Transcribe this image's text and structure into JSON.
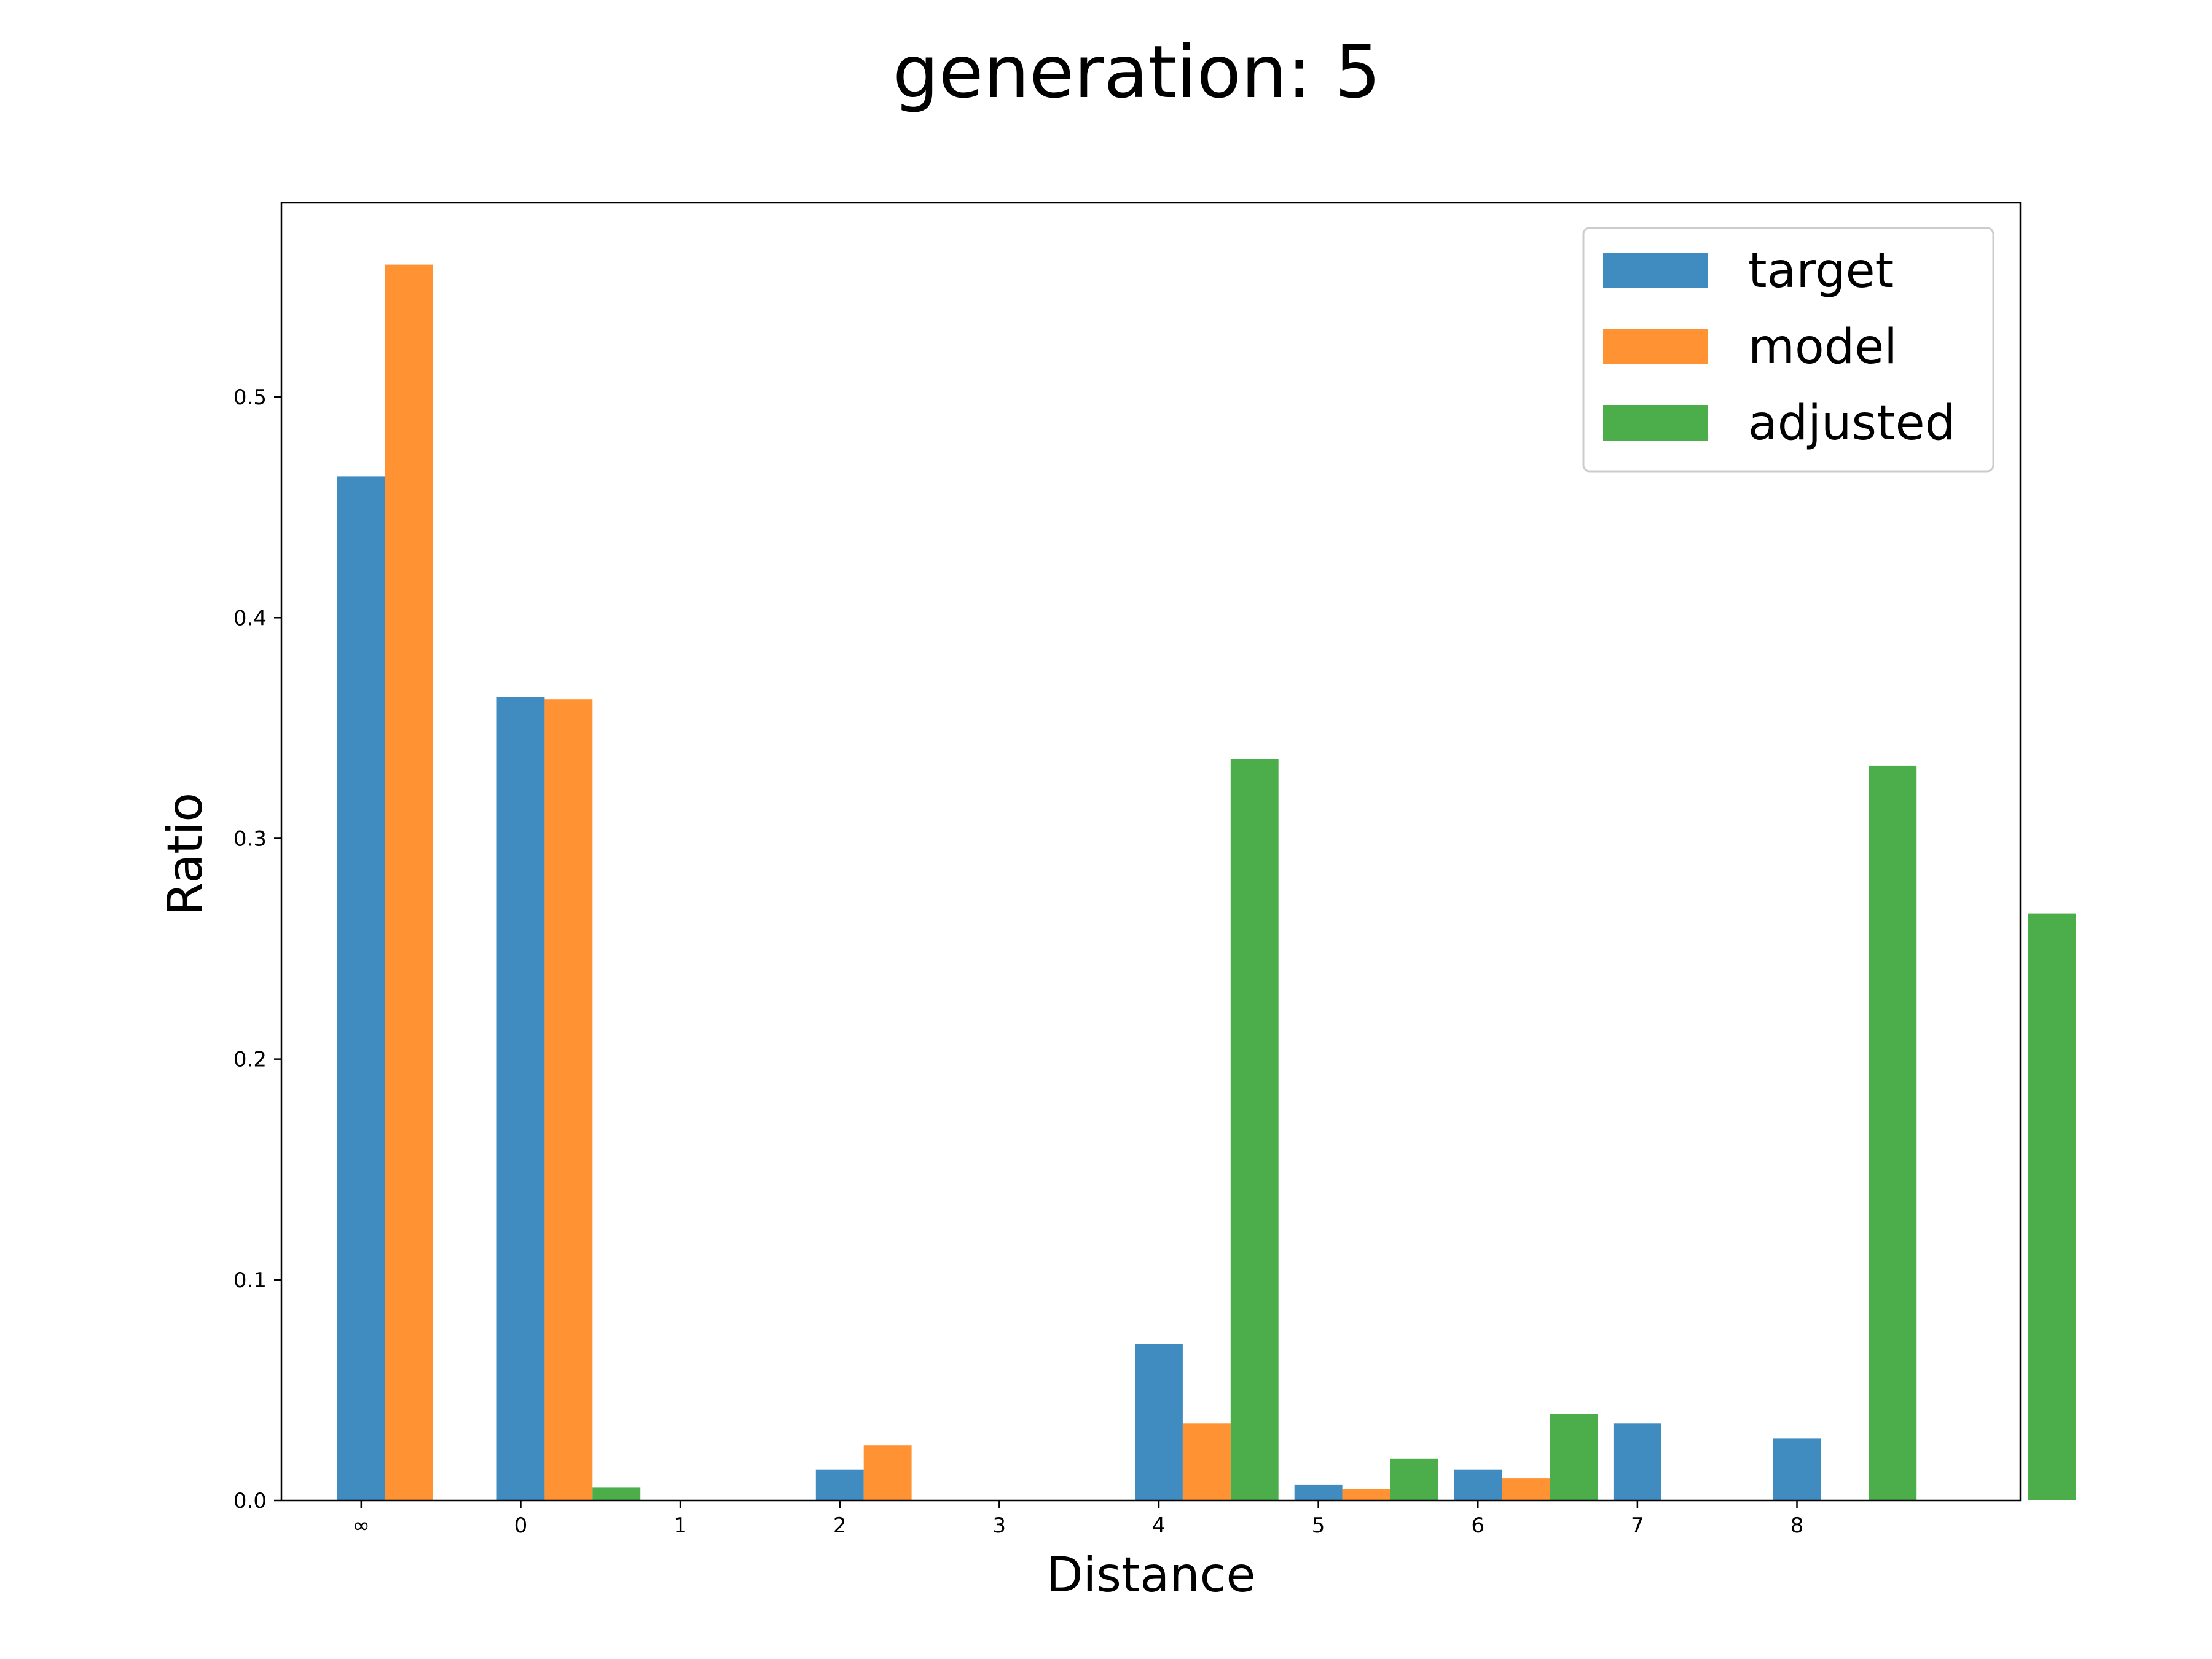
{
  "chart_data": {
    "type": "bar",
    "title": "generation: 5",
    "xlabel": "Distance",
    "ylabel": "Ratio",
    "categories": [
      "∞",
      "0",
      "1",
      "2",
      "3",
      "4",
      "5",
      "6",
      "7",
      "8"
    ],
    "ylim": [
      0,
      0.588
    ],
    "yticks": [
      0.0,
      0.1,
      0.2,
      0.3,
      0.4,
      0.5
    ],
    "ytick_labels": [
      "0.0",
      "0.1",
      "0.2",
      "0.3",
      "0.4",
      "0.5"
    ],
    "legend_position": "top-right",
    "grid": false,
    "series": [
      {
        "name": "target",
        "color": "#1f77b4",
        "positions": [
          0,
          1,
          3,
          5,
          6,
          7,
          8,
          9
        ],
        "values": [
          0.464,
          0.364,
          0.014,
          0.071,
          0.007,
          0.014,
          0.035,
          0.028
        ]
      },
      {
        "name": "model",
        "color": "#ff7f0e",
        "positions": [
          0.3,
          1.3,
          3.3,
          5.3,
          6.3,
          7.3
        ],
        "values": [
          0.56,
          0.363,
          0.025,
          0.035,
          0.005,
          0.01
        ]
      },
      {
        "name": "adjusted",
        "color": "#2ca02c",
        "positions": [
          1.6,
          5.6,
          6.6,
          7.6,
          9.6,
          10.6
        ],
        "values": [
          0.006,
          0.336,
          0.019,
          0.039,
          0.333,
          0.266
        ]
      }
    ]
  }
}
